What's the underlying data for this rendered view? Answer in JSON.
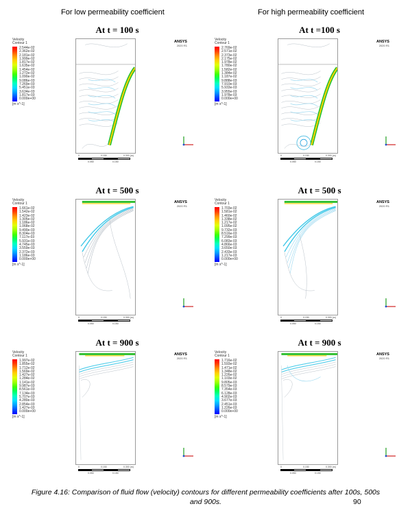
{
  "columns": {
    "left": "For low permeability coefficient",
    "right": "For high permeability coefficient"
  },
  "brand": {
    "name": "ANSYS",
    "version": "2020 R1"
  },
  "scale": {
    "t0": "0",
    "t1": "0.150",
    "t2": "0.300 (m)",
    "t3": "0.050",
    "t4": "0.150"
  },
  "colors": {
    "ramp": [
      "#0000ff",
      "#0050ff",
      "#00a0ff",
      "#00e0ff",
      "#00ffc0",
      "#00ff60",
      "#40ff00",
      "#a0ff00",
      "#e0ff00",
      "#ffd000",
      "#ff9000",
      "#ff4000",
      "#ff0000"
    ]
  },
  "panels": [
    {
      "id": "low-100",
      "title": "At t = 100 s",
      "legend": {
        "title": "Velocity",
        "subtitle": "Contour 1",
        "unit": "[m s^-1]",
        "ticks": [
          "2.544e-02",
          "2.362e-02",
          "2.181e-02",
          "1.999e-02",
          "1.817e-02",
          "1.635e-02",
          "1.454e-02",
          "1.272e-02",
          "1.090e-02",
          "9.086e-03",
          "7.269e-03",
          "5.451e-03",
          "3.634e-03",
          "1.817e-03",
          "0.000e+00"
        ]
      }
    },
    {
      "id": "high-100",
      "title": "At t =100 s",
      "legend": {
        "title": "Velocity",
        "subtitle": "Contour 1",
        "unit": "[m s^-1]",
        "ticks": [
          "2.769e-02",
          "2.571e-02",
          "2.373e-02",
          "2.175e-02",
          "1.978e-02",
          "1.780e-02",
          "1.582e-02",
          "1.384e-02",
          "1.187e-02",
          "9.888e-03",
          "7.910e-03",
          "5.933e-03",
          "3.955e-03",
          "1.978e-03",
          "0.000e+00"
        ]
      }
    },
    {
      "id": "low-500",
      "title": "At t = 500 s",
      "legend": {
        "title": "Velocity",
        "subtitle": "Contour 1",
        "unit": "[m s^-1]",
        "ticks": [
          "1.661e-02",
          "1.542e-02",
          "1.423e-02",
          "1.305e-02",
          "1.186e-02",
          "1.068e-02",
          "9.490e-03",
          "8.304e-03",
          "7.117e-03",
          "5.931e-03",
          "4.745e-03",
          "3.559e-03",
          "2.372e-03",
          "1.186e-03",
          "0.000e+00"
        ]
      }
    },
    {
      "id": "high-500",
      "title": "At t = 500 s",
      "legend": {
        "title": "Velocity",
        "subtitle": "Contour 1",
        "unit": "[m s^-1]",
        "ticks": [
          "1.703e-02",
          "1.581e-02",
          "1.460e-02",
          "1.338e-02",
          "1.217e-02",
          "1.095e-02",
          "9.732e-03",
          "8.516e-03",
          "7.299e-03",
          "6.083e-03",
          "4.866e-03",
          "3.650e-03",
          "2.433e-03",
          "1.217e-03",
          "0.000e+00"
        ]
      }
    },
    {
      "id": "low-900",
      "title": "At t = 900 s",
      "legend": {
        "title": "Velocity",
        "subtitle": "Contour 1",
        "unit": "[m s^-1]",
        "ticks": [
          "1.997e-02",
          "1.855e-02",
          "1.712e-02",
          "1.569e-02",
          "1.427e-02",
          "1.284e-02",
          "1.141e-02",
          "9.987e-03",
          "8.561e-03",
          "7.134e-03",
          "5.707e-03",
          "4.280e-03",
          "2.854e-03",
          "1.427e-03",
          "0.000e+00"
        ]
      }
    },
    {
      "id": "high-900",
      "title": "At t = 900 s",
      "legend": {
        "title": "Velocity",
        "subtitle": "Contour 1",
        "unit": "[m s^-1]",
        "ticks": [
          "1.716e-02",
          "1.593e-02",
          "1.471e-02",
          "1.348e-02",
          "1.226e-02",
          "1.103e-02",
          "9.805e-03",
          "8.579e-03",
          "7.354e-03",
          "6.128e-03",
          "4.902e-03",
          "3.677e-03",
          "2.451e-03",
          "1.226e-03",
          "0.000e+00"
        ]
      }
    }
  ],
  "caption": "Figure 4.16: Comparison of fluid flow (velocity) contours for different permeability coefficients after 100s, 500s and 900s.",
  "page_number": "90"
}
